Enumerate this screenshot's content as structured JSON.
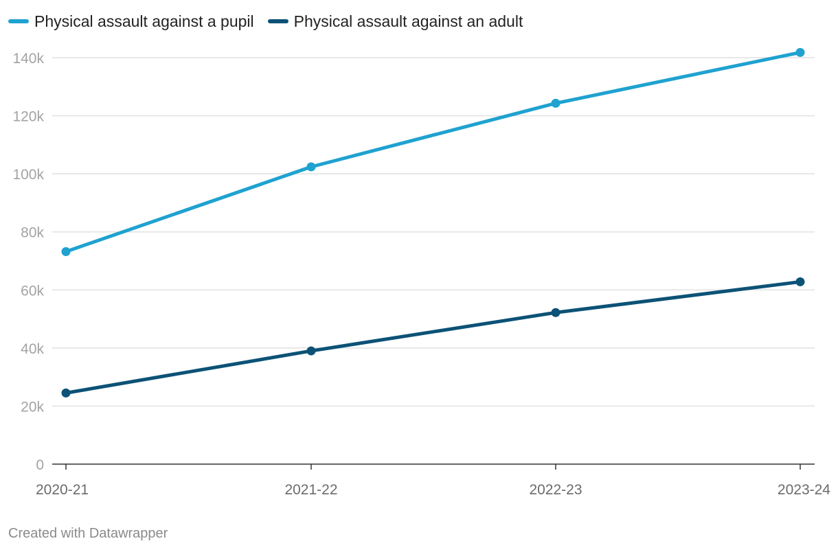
{
  "chart_data": {
    "type": "line",
    "categories": [
      "2020-21",
      "2021-22",
      "2022-23",
      "2023-24"
    ],
    "series": [
      {
        "name": "Physical assault against a pupil",
        "values": [
          73200,
          102400,
          124300,
          141800
        ],
        "color": "#1fa2d0"
      },
      {
        "name": "Physical assault against an adult",
        "values": [
          24500,
          39000,
          52200,
          62800
        ],
        "color": "#0c5276"
      }
    ],
    "yticks": [
      0,
      20000,
      40000,
      60000,
      80000,
      100000,
      120000,
      140000
    ],
    "ytick_labels": [
      "0",
      "20k",
      "40k",
      "60k",
      "80k",
      "100k",
      "120k",
      "140k"
    ],
    "ylim": [
      0,
      140000
    ],
    "grid": true,
    "legend_position": "top-left",
    "title": "",
    "xlabel": "",
    "ylabel": ""
  },
  "footer": {
    "credit": "Created with Datawrapper"
  }
}
